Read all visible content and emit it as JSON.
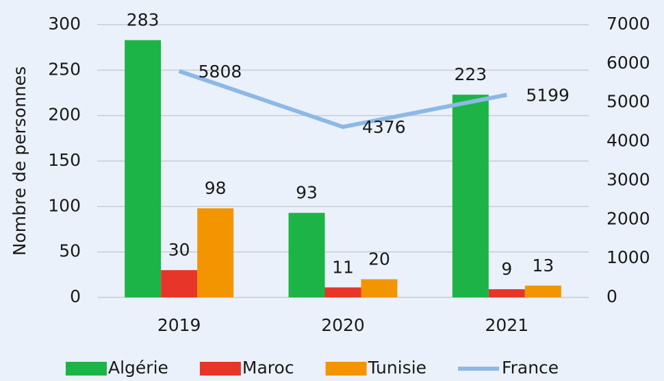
{
  "chart_data": {
    "type": "bar",
    "y_label": "Nombre de personnes",
    "categories": [
      "2019",
      "2020",
      "2021"
    ],
    "series": [
      {
        "name": "Algérie",
        "color": "#1db447",
        "values": [
          283,
          93,
          223
        ]
      },
      {
        "name": "Maroc",
        "color": "#e8352a",
        "values": [
          30,
          11,
          9
        ]
      },
      {
        "name": "Tunisie",
        "color": "#f39500",
        "values": [
          98,
          20,
          13
        ]
      },
      {
        "name": "France",
        "color": "#8db8e6",
        "type": "line",
        "axis": "y2",
        "values": [
          5808,
          4376,
          5199
        ]
      }
    ],
    "ylim": [
      0,
      300
    ],
    "yticks": [
      0,
      50,
      100,
      150,
      200,
      250,
      300
    ],
    "y2lim": [
      0,
      7000
    ],
    "y2ticks": [
      0,
      1000,
      2000,
      3000,
      4000,
      5000,
      6000,
      7000
    ],
    "grid": true,
    "legend": "bottom"
  }
}
